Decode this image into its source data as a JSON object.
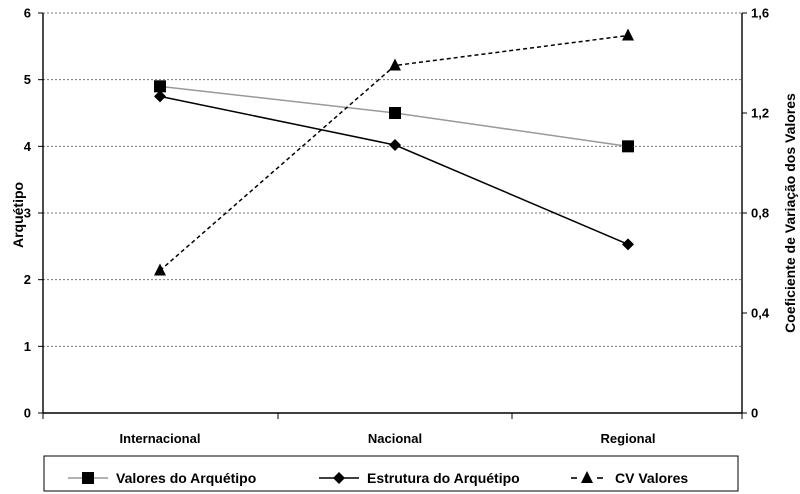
{
  "chart_data": {
    "type": "line",
    "categories": [
      "Internacional",
      "Nacional",
      "Regional"
    ],
    "y_left": {
      "label": "Arquétipo",
      "range": [
        0,
        6
      ],
      "ticks": [
        "0",
        "1",
        "2",
        "3",
        "4",
        "5",
        "6"
      ]
    },
    "y_right": {
      "label": "Coeficiente de Variação dos Valores",
      "range": [
        0,
        1.6
      ],
      "ticks": [
        "0",
        "0,4",
        "0,8",
        "1,2",
        "1,6"
      ]
    },
    "grid": "horizontal, dashed",
    "legend_position": "bottom",
    "series": [
      {
        "name": "Valores do Arquétipo",
        "axis": "left",
        "marker": "square",
        "color": "#999999",
        "line": "solid",
        "values": [
          4.9,
          4.5,
          4.0
        ]
      },
      {
        "name": "Estrutura do Arquétipo",
        "axis": "left",
        "marker": "diamond",
        "color": "#000000",
        "line": "solid",
        "values": [
          4.75,
          4.02,
          2.53
        ]
      },
      {
        "name": "CV Valores",
        "axis": "right",
        "marker": "triangle",
        "color": "#000000",
        "line": "dashed",
        "values": [
          0.57,
          1.39,
          1.51
        ]
      }
    ]
  }
}
